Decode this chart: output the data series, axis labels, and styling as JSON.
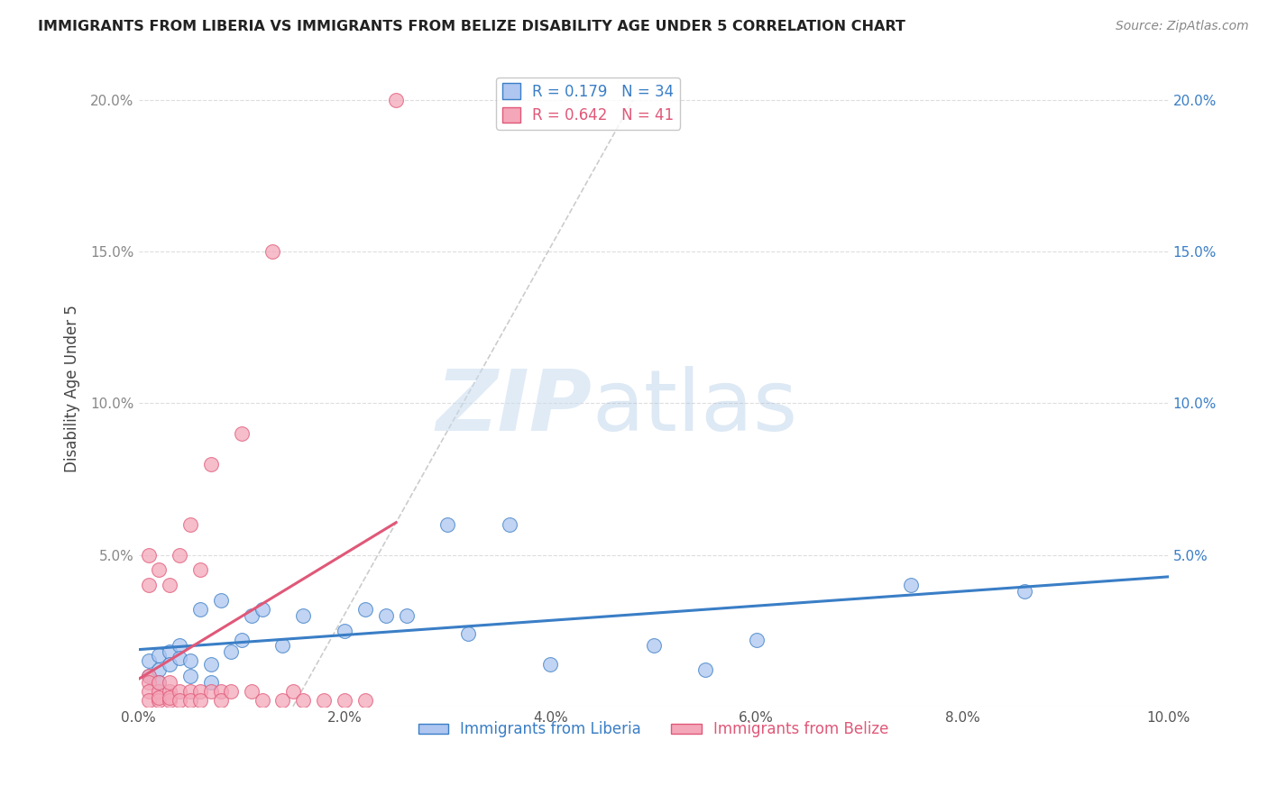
{
  "title": "IMMIGRANTS FROM LIBERIA VS IMMIGRANTS FROM BELIZE DISABILITY AGE UNDER 5 CORRELATION CHART",
  "source": "Source: ZipAtlas.com",
  "ylabel": "Disability Age Under 5",
  "xlim": [
    0.0,
    0.1
  ],
  "ylim": [
    0.0,
    0.21
  ],
  "x_ticks": [
    0.0,
    0.02,
    0.04,
    0.06,
    0.08,
    0.1
  ],
  "x_tick_labels": [
    "0.0%",
    "2.0%",
    "4.0%",
    "6.0%",
    "8.0%",
    "10.0%"
  ],
  "y_ticks": [
    0.0,
    0.05,
    0.1,
    0.15,
    0.2
  ],
  "y_tick_labels": [
    "",
    "5.0%",
    "10.0%",
    "15.0%",
    "20.0%"
  ],
  "liberia_color": "#aec6f0",
  "belize_color": "#f4a7b9",
  "liberia_line_color": "#3a7ec6",
  "belize_line_color": "#e05878",
  "R_liberia": 0.179,
  "N_liberia": 34,
  "R_belize": 0.642,
  "N_belize": 41,
  "watermark_zip": "ZIP",
  "watermark_atlas": "atlas",
  "legend_liberia": "Immigrants from Liberia",
  "legend_belize": "Immigrants from Belize",
  "liberia_x": [
    0.001,
    0.001,
    0.002,
    0.002,
    0.002,
    0.003,
    0.003,
    0.004,
    0.004,
    0.005,
    0.005,
    0.006,
    0.007,
    0.007,
    0.008,
    0.009,
    0.01,
    0.011,
    0.012,
    0.014,
    0.016,
    0.02,
    0.022,
    0.024,
    0.026,
    0.03,
    0.032,
    0.036,
    0.04,
    0.05,
    0.055,
    0.06,
    0.075,
    0.086
  ],
  "liberia_y": [
    0.015,
    0.01,
    0.017,
    0.012,
    0.008,
    0.018,
    0.014,
    0.02,
    0.016,
    0.015,
    0.01,
    0.032,
    0.014,
    0.008,
    0.035,
    0.018,
    0.022,
    0.03,
    0.032,
    0.02,
    0.03,
    0.025,
    0.032,
    0.03,
    0.03,
    0.06,
    0.024,
    0.06,
    0.014,
    0.02,
    0.012,
    0.022,
    0.04,
    0.038
  ],
  "belize_x": [
    0.001,
    0.001,
    0.001,
    0.001,
    0.001,
    0.001,
    0.002,
    0.002,
    0.002,
    0.002,
    0.002,
    0.003,
    0.003,
    0.003,
    0.003,
    0.003,
    0.004,
    0.004,
    0.004,
    0.005,
    0.005,
    0.005,
    0.006,
    0.006,
    0.006,
    0.007,
    0.007,
    0.008,
    0.008,
    0.009,
    0.01,
    0.011,
    0.012,
    0.013,
    0.014,
    0.015,
    0.016,
    0.018,
    0.02,
    0.022,
    0.025
  ],
  "belize_y": [
    0.01,
    0.05,
    0.04,
    0.008,
    0.005,
    0.002,
    0.005,
    0.045,
    0.002,
    0.008,
    0.003,
    0.04,
    0.005,
    0.002,
    0.008,
    0.003,
    0.05,
    0.005,
    0.002,
    0.06,
    0.005,
    0.002,
    0.005,
    0.002,
    0.045,
    0.005,
    0.08,
    0.005,
    0.002,
    0.005,
    0.09,
    0.005,
    0.002,
    0.15,
    0.002,
    0.005,
    0.002,
    0.002,
    0.002,
    0.002,
    0.2
  ]
}
